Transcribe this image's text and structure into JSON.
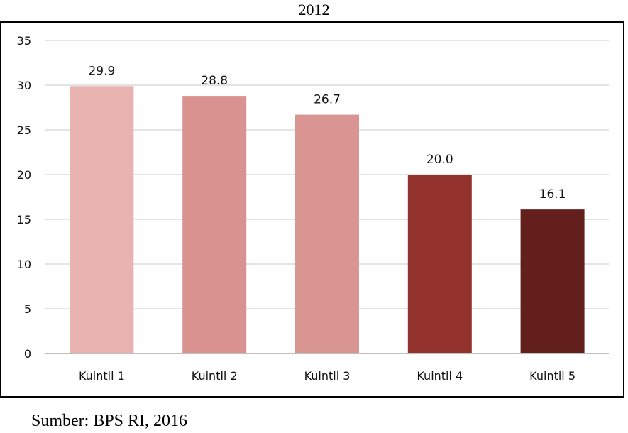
{
  "chart_data": {
    "type": "bar",
    "title": "2012",
    "categories": [
      "Kuintil 1",
      "Kuintil 2",
      "Kuintil 3",
      "Kuintil 4",
      "Kuintil 5"
    ],
    "values": [
      29.9,
      28.8,
      26.7,
      20.0,
      16.1
    ],
    "data_labels": [
      "29.9",
      "28.8",
      "26.7",
      "20.0",
      "16.1"
    ],
    "bar_colors": [
      "#e8b3b1",
      "#d99290",
      "#d99592",
      "#94322e",
      "#631f1b"
    ],
    "ylim": [
      0,
      35
    ],
    "yticks": [
      0,
      5,
      10,
      15,
      20,
      25,
      30,
      35
    ],
    "grid": true,
    "legend": "none"
  },
  "source": "Sumber: BPS RI, 2016"
}
